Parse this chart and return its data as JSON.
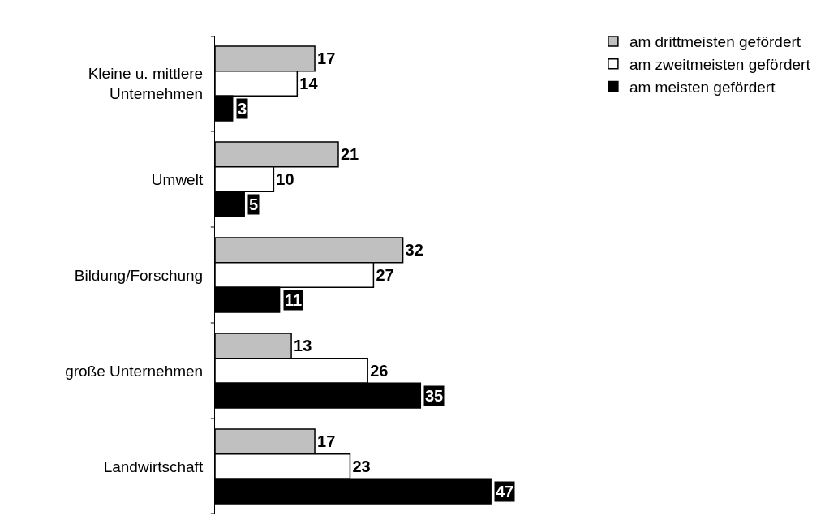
{
  "chart_data": {
    "type": "bar",
    "orientation": "horizontal",
    "categories": [
      "Kleine u. mittlere Unternehmen",
      "Umwelt",
      "Bildung/Forschung",
      "große Unternehmen",
      "Landwirtschaft"
    ],
    "series": [
      {
        "name": "am drittmeisten gefördert",
        "color": "#c0c0c0",
        "values": [
          17,
          21,
          32,
          13,
          17
        ]
      },
      {
        "name": "am zweitmeisten gefördert",
        "color": "#ffffff",
        "values": [
          14,
          10,
          27,
          26,
          23
        ]
      },
      {
        "name": "am meisten gefördert",
        "color": "#000000",
        "values": [
          3,
          5,
          11,
          35,
          47
        ]
      }
    ],
    "data_labels": true,
    "legend": "top right"
  }
}
